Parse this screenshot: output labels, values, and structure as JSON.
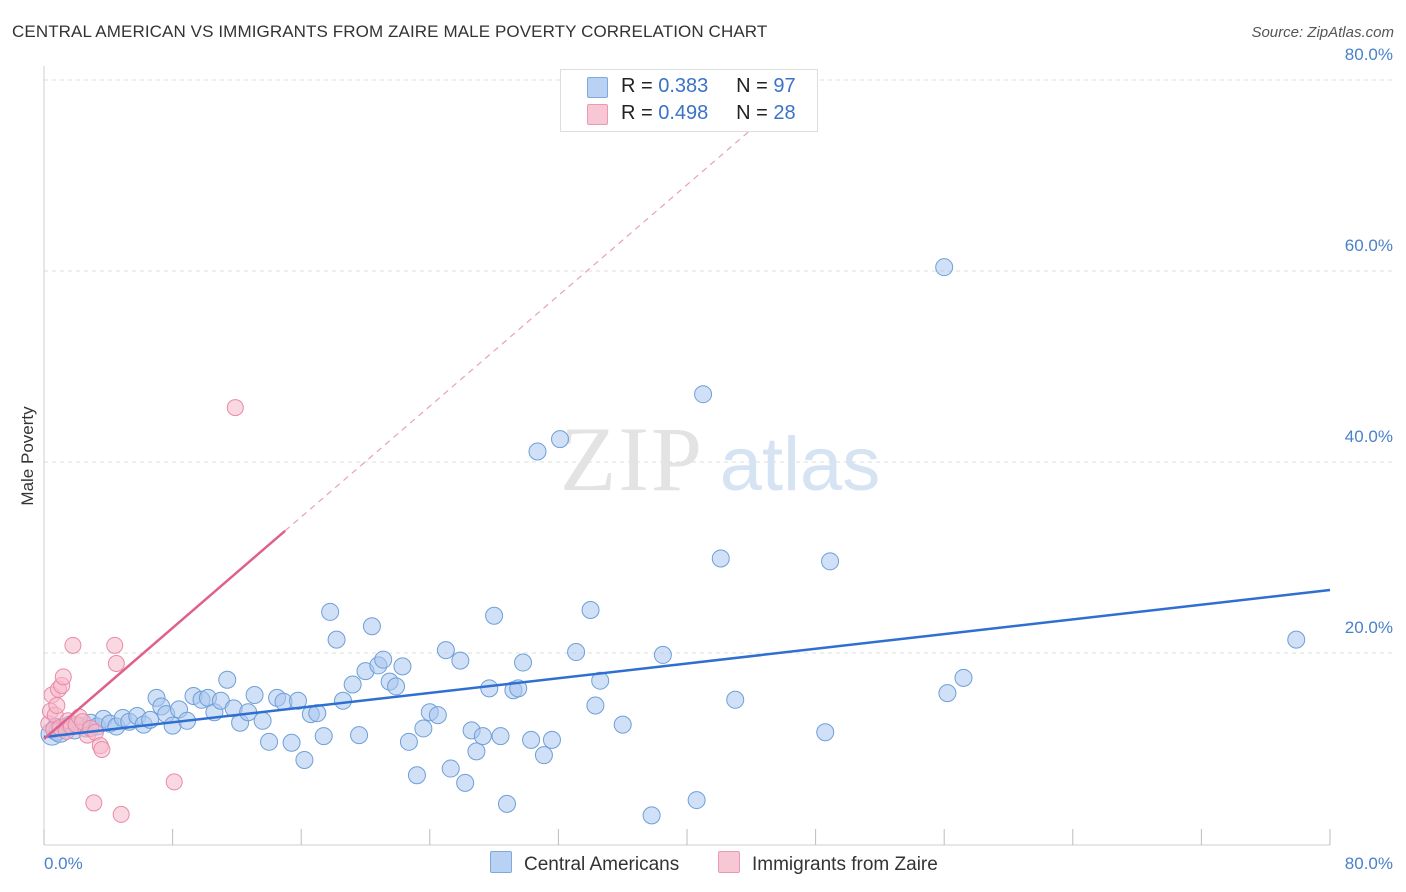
{
  "header": {
    "title": "CENTRAL AMERICAN VS IMMIGRANTS FROM ZAIRE MALE POVERTY CORRELATION CHART",
    "source": "Source: ZipAtlas.com"
  },
  "watermark": {
    "zip": "ZIP",
    "atlas": "atlas"
  },
  "legend": {
    "rows": [
      {
        "r_label": "R =",
        "r_value": "0.383",
        "n_label": "N =",
        "n_value": "97"
      },
      {
        "r_label": "R =",
        "r_value": "0.498",
        "n_label": "N =",
        "n_value": "28"
      }
    ]
  },
  "bottom_legend": {
    "items": [
      {
        "label": "Central Americans"
      },
      {
        "label": "Immigrants from Zaire"
      }
    ]
  },
  "colors": {
    "blue_fill": "#a9c7ee",
    "blue_stroke": "#6f9fd8",
    "blue_line": "#2f6fcf",
    "pink_fill": "#f5b8cb",
    "pink_stroke": "#e98aa8",
    "pink_line": "#e0608c",
    "tick_text": "#4a80c9",
    "grid": "#dddddd"
  },
  "chart_data": {
    "type": "scatter",
    "title": "CENTRAL AMERICAN VS IMMIGRANTS FROM ZAIRE MALE POVERTY CORRELATION CHART",
    "xlabel": "",
    "ylabel": "Male Poverty",
    "xlim": [
      0,
      80
    ],
    "ylim": [
      0,
      80
    ],
    "x_tick_labels": [
      "0.0%",
      "80.0%"
    ],
    "y_ticks": [
      20,
      40,
      60,
      80
    ],
    "y_tick_labels": [
      "20.0%",
      "40.0%",
      "60.0%",
      "80.0%"
    ],
    "grid": true,
    "legend_position": "top-center",
    "series": [
      {
        "name": "Central Americans",
        "r": 0.383,
        "n": 97,
        "trend": {
          "x": [
            0,
            80
          ],
          "y": [
            11.2,
            26.6
          ]
        },
        "points": [
          [
            0.5,
            11.5
          ],
          [
            0.8,
            12.0
          ],
          [
            1.0,
            11.8
          ],
          [
            1.3,
            12.2
          ],
          [
            1.6,
            12.5
          ],
          [
            1.9,
            11.9
          ],
          [
            2.2,
            12.4
          ],
          [
            2.6,
            12.1
          ],
          [
            2.9,
            12.7
          ],
          [
            3.3,
            12.3
          ],
          [
            3.7,
            13.1
          ],
          [
            4.1,
            12.6
          ],
          [
            4.5,
            12.3
          ],
          [
            4.9,
            13.2
          ],
          [
            5.3,
            12.8
          ],
          [
            5.8,
            13.4
          ],
          [
            6.2,
            12.5
          ],
          [
            6.6,
            13.0
          ],
          [
            7.0,
            15.3
          ],
          [
            7.3,
            14.4
          ],
          [
            7.6,
            13.6
          ],
          [
            8.0,
            12.4
          ],
          [
            8.4,
            14.1
          ],
          [
            8.9,
            12.9
          ],
          [
            9.3,
            15.5
          ],
          [
            9.8,
            15.1
          ],
          [
            10.2,
            15.3
          ],
          [
            10.6,
            13.8
          ],
          [
            11.0,
            15.0
          ],
          [
            11.4,
            17.2
          ],
          [
            11.8,
            14.2
          ],
          [
            12.2,
            12.7
          ],
          [
            12.7,
            13.8
          ],
          [
            13.1,
            15.6
          ],
          [
            13.6,
            12.9
          ],
          [
            14.0,
            10.7
          ],
          [
            14.5,
            15.3
          ],
          [
            14.9,
            14.9
          ],
          [
            15.4,
            10.6
          ],
          [
            15.8,
            15.0
          ],
          [
            16.2,
            8.8
          ],
          [
            16.6,
            13.6
          ],
          [
            17.0,
            13.7
          ],
          [
            17.4,
            11.3
          ],
          [
            17.8,
            24.3
          ],
          [
            18.2,
            21.4
          ],
          [
            18.6,
            15.0
          ],
          [
            19.2,
            16.7
          ],
          [
            19.6,
            11.4
          ],
          [
            20.0,
            18.1
          ],
          [
            20.4,
            22.8
          ],
          [
            20.8,
            18.7
          ],
          [
            21.1,
            19.3
          ],
          [
            21.5,
            17.0
          ],
          [
            21.9,
            16.5
          ],
          [
            22.3,
            18.6
          ],
          [
            22.7,
            10.7
          ],
          [
            23.2,
            7.2
          ],
          [
            23.6,
            12.1
          ],
          [
            24.0,
            13.8
          ],
          [
            24.5,
            13.5
          ],
          [
            25.0,
            20.3
          ],
          [
            25.3,
            7.9
          ],
          [
            25.9,
            19.2
          ],
          [
            26.2,
            6.4
          ],
          [
            26.6,
            11.9
          ],
          [
            26.9,
            9.7
          ],
          [
            27.3,
            11.3
          ],
          [
            27.7,
            16.3
          ],
          [
            28.0,
            23.9
          ],
          [
            28.4,
            11.3
          ],
          [
            28.8,
            4.2
          ],
          [
            29.2,
            16.1
          ],
          [
            29.5,
            16.3
          ],
          [
            29.8,
            19.0
          ],
          [
            30.3,
            10.9
          ],
          [
            30.7,
            41.1
          ],
          [
            31.1,
            9.3
          ],
          [
            31.6,
            10.9
          ],
          [
            32.1,
            42.4
          ],
          [
            33.1,
            20.1
          ],
          [
            34.0,
            24.5
          ],
          [
            34.3,
            14.5
          ],
          [
            34.6,
            17.1
          ],
          [
            36.0,
            12.5
          ],
          [
            37.8,
            3.0
          ],
          [
            38.5,
            19.8
          ],
          [
            40.6,
            4.6
          ],
          [
            41.0,
            47.1
          ],
          [
            42.1,
            29.9
          ],
          [
            43.0,
            15.1
          ],
          [
            48.6,
            11.7
          ],
          [
            48.9,
            29.6
          ],
          [
            56.0,
            60.4
          ],
          [
            56.2,
            15.8
          ],
          [
            57.2,
            17.4
          ],
          [
            77.9,
            21.4
          ]
        ]
      },
      {
        "name": "Immigrants from Zaire",
        "r": 0.498,
        "n": 28,
        "trend": {
          "x": [
            0,
            15.0
          ],
          "y": [
            11.0,
            32.8
          ],
          "extended": {
            "x": [
              15.0,
              45.5
            ],
            "y": [
              32.8,
              77.0
            ]
          }
        },
        "points": [
          [
            0.3,
            12.6
          ],
          [
            0.4,
            13.9
          ],
          [
            0.5,
            15.6
          ],
          [
            0.6,
            12.0
          ],
          [
            0.7,
            13.5
          ],
          [
            0.8,
            14.5
          ],
          [
            0.9,
            16.2
          ],
          [
            1.0,
            12.2
          ],
          [
            1.1,
            16.6
          ],
          [
            1.2,
            17.5
          ],
          [
            1.4,
            11.8
          ],
          [
            1.5,
            12.9
          ],
          [
            1.7,
            12.3
          ],
          [
            1.8,
            20.8
          ],
          [
            2.0,
            12.5
          ],
          [
            2.2,
            13.3
          ],
          [
            2.4,
            12.8
          ],
          [
            2.7,
            11.4
          ],
          [
            2.9,
            12.1
          ],
          [
            3.1,
            4.3
          ],
          [
            3.2,
            11.7
          ],
          [
            3.5,
            10.3
          ],
          [
            3.6,
            9.9
          ],
          [
            4.4,
            20.8
          ],
          [
            4.5,
            18.9
          ],
          [
            4.8,
            3.1
          ],
          [
            8.1,
            6.5
          ],
          [
            11.9,
            45.7
          ]
        ]
      }
    ]
  }
}
